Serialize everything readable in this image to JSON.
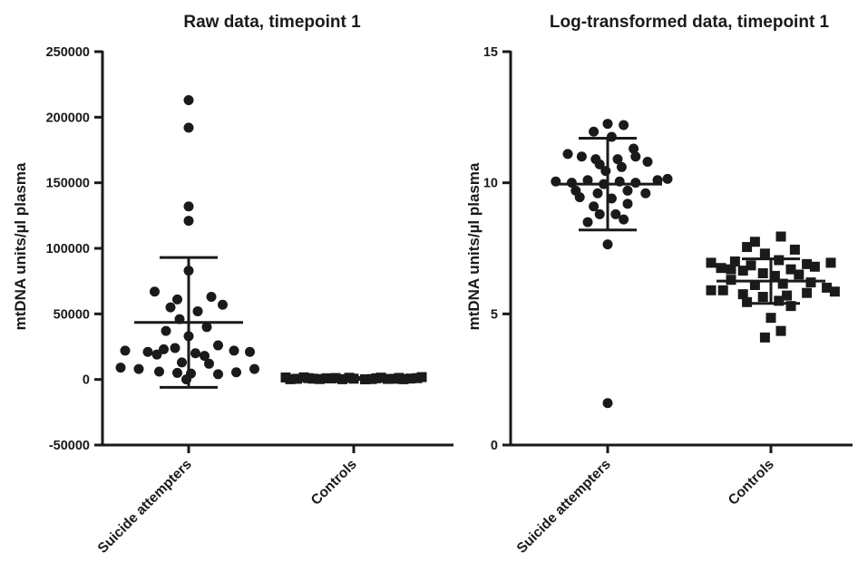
{
  "chart_data": [
    {
      "type": "scatter",
      "title": "Raw data, timepoint 1",
      "ylabel": "mtDNA units/µl plasma",
      "xlabel": "",
      "ylim": [
        -50000,
        250000
      ],
      "yticks": [
        -50000,
        0,
        50000,
        100000,
        150000,
        200000,
        250000
      ],
      "yticklabels": [
        "-50000",
        "0",
        "50000",
        "100000",
        "150000",
        "200000",
        "250000"
      ],
      "categories": [
        "Suicide attempters",
        "Controls"
      ],
      "marker": [
        "circle",
        "square"
      ],
      "color": "#1a1a1a",
      "series": [
        {
          "category": "Suicide attempters",
          "mean": 43500,
          "sd_upper": 93000,
          "sd_lower": -6000,
          "points": [
            [
              0,
              213000
            ],
            [
              0,
              192000
            ],
            [
              0,
              132000
            ],
            [
              0,
              121000
            ],
            [
              0,
              83000
            ],
            [
              -0.15,
              67000
            ],
            [
              -0.05,
              61000
            ],
            [
              0.1,
              63000
            ],
            [
              -0.08,
              55000
            ],
            [
              0.04,
              52000
            ],
            [
              0.15,
              57000
            ],
            [
              -0.04,
              46000
            ],
            [
              0.08,
              40000
            ],
            [
              -0.1,
              37000
            ],
            [
              0,
              33000
            ],
            [
              -0.28,
              22000
            ],
            [
              -0.18,
              21000
            ],
            [
              -0.11,
              23000
            ],
            [
              -0.06,
              24000
            ],
            [
              -0.14,
              19000
            ],
            [
              0.03,
              20000
            ],
            [
              0.13,
              26000
            ],
            [
              0.2,
              22000
            ],
            [
              0.27,
              21000
            ],
            [
              0.07,
              18000
            ],
            [
              -0.03,
              13000
            ],
            [
              0.09,
              12000
            ],
            [
              -0.3,
              9000
            ],
            [
              -0.22,
              8000
            ],
            [
              -0.13,
              6000
            ],
            [
              -0.05,
              5000
            ],
            [
              0.01,
              4500
            ],
            [
              0.13,
              4000
            ],
            [
              0.21,
              5500
            ],
            [
              0.29,
              8000
            ],
            [
              -0.01,
              0
            ]
          ]
        },
        {
          "category": "Controls",
          "mean": 700,
          "sd_upper": 1500,
          "sd_lower": 0,
          "points": [
            [
              -0.3,
              1500
            ],
            [
              -0.25,
              500
            ],
            [
              -0.2,
              1000
            ],
            [
              -0.15,
              300
            ],
            [
              -0.1,
              800
            ],
            [
              -0.05,
              200
            ],
            [
              0,
              600
            ],
            [
              0.05,
              100
            ],
            [
              0.1,
              900
            ],
            [
              0.15,
              400
            ],
            [
              0.2,
              1200
            ],
            [
              0.25,
              700
            ],
            [
              0.3,
              1800
            ],
            [
              -0.28,
              200
            ],
            [
              -0.22,
              1600
            ],
            [
              -0.12,
              900
            ],
            [
              -0.02,
              1300
            ],
            [
              0.08,
              300
            ],
            [
              0.18,
              500
            ],
            [
              0.28,
              1000
            ],
            [
              -0.18,
              600
            ],
            [
              0.12,
              1400
            ],
            [
              0.22,
              200
            ],
            [
              -0.08,
              1100
            ]
          ]
        }
      ]
    },
    {
      "type": "scatter",
      "title": "Log-transformed data, timepoint 1",
      "ylabel": "mtDNA units/µl plasma",
      "xlabel": "",
      "ylim": [
        0,
        15
      ],
      "yticks": [
        0,
        5,
        10,
        15
      ],
      "yticklabels": [
        "0",
        "5",
        "10",
        "15"
      ],
      "categories": [
        "Suicide attempters",
        "Controls"
      ],
      "marker": [
        "circle",
        "square"
      ],
      "color": "#1a1a1a",
      "series": [
        {
          "category": "Suicide attempters",
          "mean": 9.95,
          "sd_upper": 11.7,
          "sd_lower": 8.2,
          "points": [
            [
              0,
              12.25
            ],
            [
              0.08,
              12.2
            ],
            [
              -0.07,
              11.95
            ],
            [
              0.02,
              11.75
            ],
            [
              0.13,
              11.3
            ],
            [
              -0.2,
              11.1
            ],
            [
              -0.13,
              11.0
            ],
            [
              -0.06,
              10.9
            ],
            [
              0.05,
              10.9
            ],
            [
              0.14,
              11.0
            ],
            [
              0.2,
              10.8
            ],
            [
              -0.04,
              10.7
            ],
            [
              0.07,
              10.6
            ],
            [
              -0.01,
              10.45
            ],
            [
              -0.26,
              10.05
            ],
            [
              -0.18,
              10.0
            ],
            [
              -0.1,
              10.1
            ],
            [
              -0.02,
              9.95
            ],
            [
              0.06,
              10.05
            ],
            [
              0.14,
              10.0
            ],
            [
              0.25,
              10.1
            ],
            [
              0.3,
              10.15
            ],
            [
              -0.16,
              9.7
            ],
            [
              -0.05,
              9.6
            ],
            [
              0.1,
              9.7
            ],
            [
              0.19,
              9.6
            ],
            [
              -0.14,
              9.45
            ],
            [
              0.02,
              9.4
            ],
            [
              -0.07,
              9.1
            ],
            [
              0.1,
              9.2
            ],
            [
              -0.04,
              8.8
            ],
            [
              0.04,
              8.8
            ],
            [
              -0.1,
              8.5
            ],
            [
              0.08,
              8.6
            ],
            [
              0,
              7.65
            ],
            [
              0,
              1.6
            ]
          ]
        },
        {
          "category": "Controls",
          "mean": 6.25,
          "sd_upper": 7.1,
          "sd_lower": 5.4,
          "points": [
            [
              0.05,
              7.95
            ],
            [
              -0.08,
              7.75
            ],
            [
              -0.12,
              7.55
            ],
            [
              0.12,
              7.45
            ],
            [
              -0.03,
              7.3
            ],
            [
              -0.18,
              7.0
            ],
            [
              0.04,
              7.05
            ],
            [
              -0.3,
              6.95
            ],
            [
              -0.25,
              6.75
            ],
            [
              -0.1,
              6.85
            ],
            [
              0.18,
              6.9
            ],
            [
              0.3,
              6.95
            ],
            [
              -0.2,
              6.7
            ],
            [
              -0.14,
              6.65
            ],
            [
              0.1,
              6.7
            ],
            [
              0.22,
              6.8
            ],
            [
              0.14,
              6.5
            ],
            [
              -0.04,
              6.55
            ],
            [
              0.02,
              6.45
            ],
            [
              -0.3,
              5.9
            ],
            [
              -0.2,
              6.3
            ],
            [
              -0.24,
              5.9
            ],
            [
              -0.08,
              6.1
            ],
            [
              0.06,
              6.15
            ],
            [
              0.2,
              6.2
            ],
            [
              0.28,
              6.0
            ],
            [
              0.32,
              5.85
            ],
            [
              -0.14,
              5.75
            ],
            [
              -0.04,
              5.65
            ],
            [
              0.08,
              5.7
            ],
            [
              0.18,
              5.8
            ],
            [
              -0.12,
              5.45
            ],
            [
              0.04,
              5.5
            ],
            [
              0.1,
              5.3
            ],
            [
              0,
              4.85
            ],
            [
              0.05,
              4.35
            ],
            [
              -0.03,
              4.1
            ]
          ]
        }
      ]
    }
  ]
}
